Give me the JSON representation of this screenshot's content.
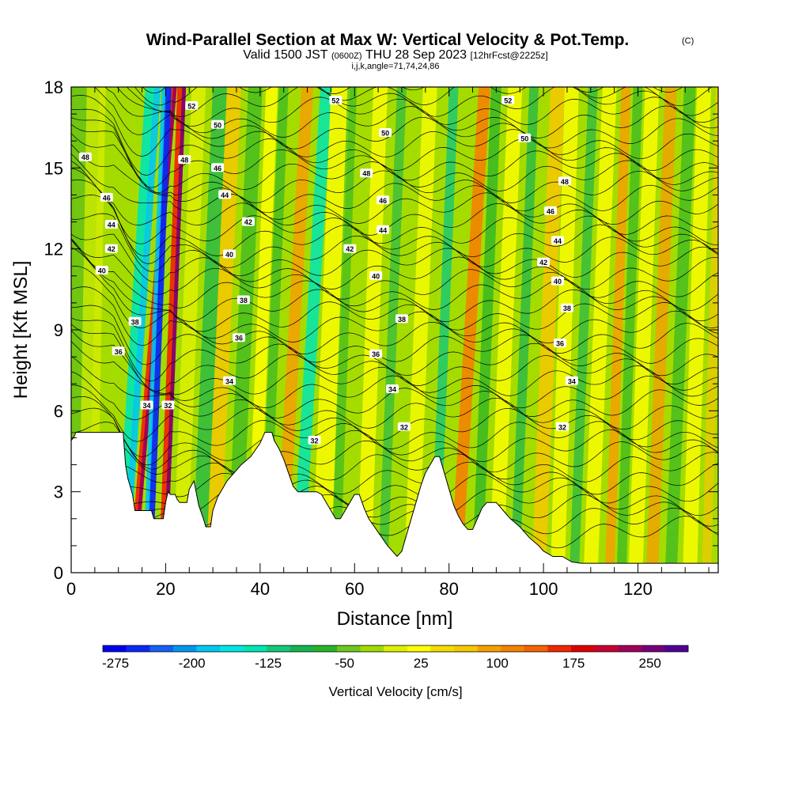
{
  "chart_data": {
    "type": "heatmap",
    "title": "Wind-Parallel Section at Max W: Vertical Velocity & Pot.Temp.",
    "title_mark": "(C)",
    "subtitle": {
      "lead": "Valid 1500 JST",
      "zulu": "(0600Z)",
      "date": "THU 28 Sep 2023",
      "forecast": "[12hrFcst@2225z]"
    },
    "info_line": "i,j,k,angle=71,74,24,86",
    "xlabel": "Distance [nm]",
    "ylabel": "Height [Kft MSL]",
    "xlim": [
      0,
      137
    ],
    "ylim": [
      0,
      18
    ],
    "x_ticks": [
      "0",
      "20",
      "40",
      "60",
      "80",
      "100",
      "120"
    ],
    "y_ticks": [
      "0",
      "3",
      "6",
      "9",
      "12",
      "15",
      "18"
    ],
    "colorbar": {
      "label": "Vertical Velocity [cm/s]",
      "range": [
        -287.5,
        287.5
      ],
      "tick_labels": [
        "-275",
        "-200",
        "-125",
        "-50",
        "25",
        "100",
        "175",
        "250"
      ],
      "tick_values": [
        -275,
        -200,
        -125,
        -50,
        25,
        100,
        175,
        250
      ],
      "colors": [
        "#0000f0",
        "#0a28f5",
        "#1460f5",
        "#0096f0",
        "#00c8f0",
        "#00e6e6",
        "#00e6b4",
        "#14c878",
        "#14b450",
        "#28b428",
        "#6ec81e",
        "#a0dc00",
        "#dcf000",
        "#ffff00",
        "#f5dc00",
        "#f5c800",
        "#f5a000",
        "#f58200",
        "#f56400",
        "#f02800",
        "#dc0000",
        "#c80032",
        "#a0005a",
        "#780078",
        "#500096"
      ]
    },
    "contour_labels": [
      {
        "value": "52",
        "x": 25.5,
        "y": 17.3
      },
      {
        "value": "50",
        "x": 31,
        "y": 16.6
      },
      {
        "value": "52",
        "x": 56,
        "y": 17.5
      },
      {
        "value": "50",
        "x": 66.5,
        "y": 16.3
      },
      {
        "value": "52",
        "x": 92.5,
        "y": 17.5
      },
      {
        "value": "50",
        "x": 96,
        "y": 16.1
      },
      {
        "value": "48",
        "x": 3,
        "y": 15.4
      },
      {
        "value": "48",
        "x": 24,
        "y": 15.3
      },
      {
        "value": "46",
        "x": 31,
        "y": 15
      },
      {
        "value": "48",
        "x": 62.5,
        "y": 14.8
      },
      {
        "value": "48",
        "x": 104.5,
        "y": 14.5
      },
      {
        "value": "46",
        "x": 7.5,
        "y": 13.9
      },
      {
        "value": "44",
        "x": 32.5,
        "y": 14
      },
      {
        "value": "46",
        "x": 66,
        "y": 13.8
      },
      {
        "value": "46",
        "x": 101.5,
        "y": 13.4
      },
      {
        "value": "44",
        "x": 8.5,
        "y": 12.9
      },
      {
        "value": "42",
        "x": 37.5,
        "y": 13
      },
      {
        "value": "44",
        "x": 66,
        "y": 12.7
      },
      {
        "value": "44",
        "x": 103,
        "y": 12.3
      },
      {
        "value": "42",
        "x": 8.5,
        "y": 12
      },
      {
        "value": "42",
        "x": 59,
        "y": 12
      },
      {
        "value": "40",
        "x": 33.5,
        "y": 11.8
      },
      {
        "value": "42",
        "x": 100,
        "y": 11.5
      },
      {
        "value": "40",
        "x": 6.5,
        "y": 11.2
      },
      {
        "value": "40",
        "x": 64.5,
        "y": 11
      },
      {
        "value": "40",
        "x": 103,
        "y": 10.8
      },
      {
        "value": "38",
        "x": 36.5,
        "y": 10.1
      },
      {
        "value": "38",
        "x": 105,
        "y": 9.8
      },
      {
        "value": "38",
        "x": 13.5,
        "y": 9.3
      },
      {
        "value": "38",
        "x": 70,
        "y": 9.4
      },
      {
        "value": "36",
        "x": 35.5,
        "y": 8.7
      },
      {
        "value": "36",
        "x": 103.5,
        "y": 8.5
      },
      {
        "value": "36",
        "x": 10,
        "y": 8.2
      },
      {
        "value": "36",
        "x": 64.5,
        "y": 8.1
      },
      {
        "value": "34",
        "x": 33.5,
        "y": 7.1
      },
      {
        "value": "34",
        "x": 106,
        "y": 7.1
      },
      {
        "value": "34",
        "x": 68,
        "y": 6.8
      },
      {
        "value": "34",
        "x": 16,
        "y": 6.2
      },
      {
        "value": "32",
        "x": 20.5,
        "y": 6.2
      },
      {
        "value": "32",
        "x": 70.5,
        "y": 5.4
      },
      {
        "value": "32",
        "x": 104,
        "y": 5.4
      },
      {
        "value": "32",
        "x": 51.5,
        "y": 4.9
      }
    ],
    "grid": false
  }
}
